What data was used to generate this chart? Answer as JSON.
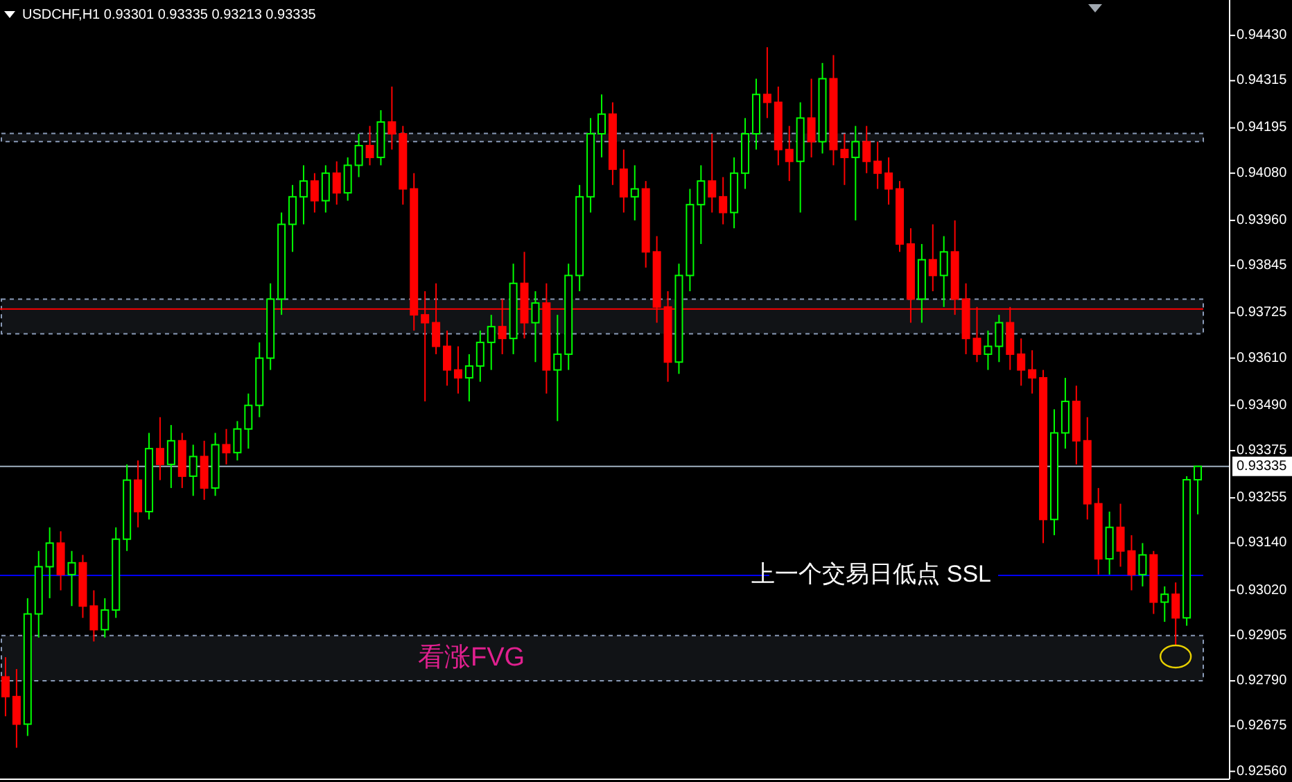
{
  "chart_data": {
    "type": "candlestick",
    "title": "USDCHF,H1 0.93301 0.93335 0.93213 0.93335",
    "categories": [
      null,
      null,
      null,
      null,
      null,
      null,
      null,
      null,
      null,
      null,
      null,
      null,
      null,
      null,
      null,
      null,
      null,
      null,
      null,
      null,
      null,
      null,
      null,
      null,
      null,
      null,
      null,
      null,
      null,
      null,
      null,
      null,
      null,
      null,
      null,
      null,
      null,
      null,
      null,
      null,
      null,
      null,
      null,
      null,
      null,
      null,
      null,
      null,
      null,
      null,
      null,
      null,
      null,
      null,
      null,
      null,
      null,
      null,
      null,
      null,
      null,
      null,
      null,
      null,
      null,
      null,
      null,
      null,
      null,
      null,
      null,
      null,
      null,
      null,
      null,
      null,
      null,
      null,
      null,
      null,
      null,
      null,
      null,
      null,
      null,
      null,
      null,
      null,
      null,
      null,
      null,
      null,
      null,
      null,
      null,
      null,
      null,
      null,
      null,
      null,
      null,
      null,
      null,
      null,
      null,
      null,
      null,
      null,
      null
    ],
    "ohlc": [
      [
        0.928,
        0.9285,
        0.927,
        0.9275
      ],
      [
        0.9275,
        0.9282,
        0.9262,
        0.9268
      ],
      [
        0.9268,
        0.93,
        0.9265,
        0.9296
      ],
      [
        0.9296,
        0.9312,
        0.929,
        0.9308
      ],
      [
        0.9308,
        0.9318,
        0.93,
        0.9314
      ],
      [
        0.9314,
        0.9317,
        0.9302,
        0.9306
      ],
      [
        0.9306,
        0.9312,
        0.9298,
        0.9309
      ],
      [
        0.9309,
        0.9311,
        0.9295,
        0.9298
      ],
      [
        0.9298,
        0.9302,
        0.9289,
        0.9292
      ],
      [
        0.9292,
        0.93,
        0.929,
        0.9297
      ],
      [
        0.9297,
        0.9318,
        0.9295,
        0.9315
      ],
      [
        0.9315,
        0.9334,
        0.9312,
        0.933
      ],
      [
        0.933,
        0.9335,
        0.9318,
        0.9322
      ],
      [
        0.9322,
        0.9342,
        0.932,
        0.9338
      ],
      [
        0.9338,
        0.9346,
        0.933,
        0.9334
      ],
      [
        0.9334,
        0.9344,
        0.9328,
        0.934
      ],
      [
        0.934,
        0.9342,
        0.9328,
        0.9331
      ],
      [
        0.9331,
        0.9339,
        0.9326,
        0.9336
      ],
      [
        0.9336,
        0.934,
        0.9325,
        0.9328
      ],
      [
        0.9328,
        0.9342,
        0.9326,
        0.9339
      ],
      [
        0.9339,
        0.9343,
        0.9334,
        0.9337
      ],
      [
        0.9337,
        0.9345,
        0.9335,
        0.9343
      ],
      [
        0.9343,
        0.9352,
        0.9338,
        0.9349
      ],
      [
        0.9349,
        0.9365,
        0.9346,
        0.9361
      ],
      [
        0.9361,
        0.938,
        0.9358,
        0.9376
      ],
      [
        0.9376,
        0.9398,
        0.9372,
        0.9395
      ],
      [
        0.9395,
        0.9405,
        0.9388,
        0.9402
      ],
      [
        0.9402,
        0.941,
        0.9395,
        0.9406
      ],
      [
        0.9406,
        0.9408,
        0.9398,
        0.9401
      ],
      [
        0.9401,
        0.941,
        0.9398,
        0.9408
      ],
      [
        0.9408,
        0.9411,
        0.94,
        0.9403
      ],
      [
        0.9403,
        0.9412,
        0.9401,
        0.941
      ],
      [
        0.941,
        0.9418,
        0.9407,
        0.9415
      ],
      [
        0.9415,
        0.942,
        0.941,
        0.9412
      ],
      [
        0.9412,
        0.9424,
        0.941,
        0.9421
      ],
      [
        0.9421,
        0.943,
        0.9414,
        0.9418
      ],
      [
        0.9418,
        0.942,
        0.94,
        0.9404
      ],
      [
        0.9404,
        0.9408,
        0.9368,
        0.9372
      ],
      [
        0.9372,
        0.9378,
        0.935,
        0.937
      ],
      [
        0.937,
        0.938,
        0.9362,
        0.9364
      ],
      [
        0.9364,
        0.9368,
        0.9354,
        0.9358
      ],
      [
        0.9358,
        0.9364,
        0.9352,
        0.9356
      ],
      [
        0.9356,
        0.9362,
        0.935,
        0.9359
      ],
      [
        0.9359,
        0.9368,
        0.9355,
        0.9365
      ],
      [
        0.9365,
        0.9372,
        0.9358,
        0.9369
      ],
      [
        0.9369,
        0.9376,
        0.9362,
        0.9366
      ],
      [
        0.9366,
        0.9385,
        0.9362,
        0.938
      ],
      [
        0.938,
        0.9388,
        0.9366,
        0.937
      ],
      [
        0.937,
        0.9378,
        0.936,
        0.9375
      ],
      [
        0.9375,
        0.938,
        0.9352,
        0.9358
      ],
      [
        0.9358,
        0.9372,
        0.9345,
        0.9362
      ],
      [
        0.9362,
        0.9385,
        0.9358,
        0.9382
      ],
      [
        0.9382,
        0.9405,
        0.9378,
        0.9402
      ],
      [
        0.9402,
        0.9422,
        0.9398,
        0.9418
      ],
      [
        0.9418,
        0.9428,
        0.9412,
        0.9423
      ],
      [
        0.9423,
        0.9426,
        0.9405,
        0.9409
      ],
      [
        0.9409,
        0.9414,
        0.9398,
        0.9402
      ],
      [
        0.9402,
        0.941,
        0.9396,
        0.9404
      ],
      [
        0.9404,
        0.9406,
        0.9384,
        0.9388
      ],
      [
        0.9388,
        0.9392,
        0.937,
        0.9374
      ],
      [
        0.9374,
        0.9378,
        0.9355,
        0.936
      ],
      [
        0.936,
        0.9385,
        0.9357,
        0.9382
      ],
      [
        0.9382,
        0.9404,
        0.9378,
        0.94
      ],
      [
        0.94,
        0.941,
        0.939,
        0.9406
      ],
      [
        0.9406,
        0.9418,
        0.9398,
        0.9402
      ],
      [
        0.9402,
        0.9407,
        0.9395,
        0.9398
      ],
      [
        0.9398,
        0.9412,
        0.9394,
        0.9408
      ],
      [
        0.9408,
        0.9422,
        0.9404,
        0.9418
      ],
      [
        0.9418,
        0.9432,
        0.9414,
        0.9428
      ],
      [
        0.9428,
        0.944,
        0.9422,
        0.9426
      ],
      [
        0.9426,
        0.943,
        0.941,
        0.9414
      ],
      [
        0.9414,
        0.942,
        0.9406,
        0.9411
      ],
      [
        0.9411,
        0.9426,
        0.9398,
        0.9422
      ],
      [
        0.9422,
        0.9432,
        0.9412,
        0.9416
      ],
      [
        0.9416,
        0.9436,
        0.9413,
        0.9432
      ],
      [
        0.9432,
        0.9438,
        0.941,
        0.9414
      ],
      [
        0.9414,
        0.9418,
        0.9405,
        0.9412
      ],
      [
        0.9412,
        0.942,
        0.9396,
        0.9416
      ],
      [
        0.9416,
        0.942,
        0.9408,
        0.9411
      ],
      [
        0.9411,
        0.9416,
        0.9404,
        0.9408
      ],
      [
        0.9408,
        0.9412,
        0.94,
        0.9404
      ],
      [
        0.9404,
        0.9406,
        0.9388,
        0.939
      ],
      [
        0.939,
        0.9394,
        0.937,
        0.9376
      ],
      [
        0.9376,
        0.939,
        0.937,
        0.9386
      ],
      [
        0.9386,
        0.9395,
        0.9378,
        0.9382
      ],
      [
        0.9382,
        0.9392,
        0.9374,
        0.9388
      ],
      [
        0.9388,
        0.9396,
        0.9372,
        0.9376
      ],
      [
        0.9376,
        0.938,
        0.9362,
        0.9366
      ],
      [
        0.9366,
        0.9374,
        0.936,
        0.9362
      ],
      [
        0.9362,
        0.9368,
        0.9358,
        0.9364
      ],
      [
        0.9364,
        0.9372,
        0.936,
        0.937
      ],
      [
        0.937,
        0.9374,
        0.9358,
        0.9362
      ],
      [
        0.9362,
        0.9366,
        0.9354,
        0.9358
      ],
      [
        0.9358,
        0.9363,
        0.9352,
        0.9356
      ],
      [
        0.9356,
        0.9358,
        0.9314,
        0.932
      ],
      [
        0.932,
        0.9348,
        0.9316,
        0.9342
      ],
      [
        0.9342,
        0.9356,
        0.9338,
        0.935
      ],
      [
        0.935,
        0.9354,
        0.9334,
        0.934
      ],
      [
        0.934,
        0.9346,
        0.932,
        0.9324
      ],
      [
        0.9324,
        0.9328,
        0.9306,
        0.931
      ],
      [
        0.931,
        0.9322,
        0.9306,
        0.9318
      ],
      [
        0.9318,
        0.9324,
        0.9308,
        0.9312
      ],
      [
        0.9312,
        0.9316,
        0.9302,
        0.9306
      ],
      [
        0.9306,
        0.9314,
        0.9303,
        0.9311
      ],
      [
        0.9311,
        0.9312,
        0.9296,
        0.9299
      ],
      [
        0.9299,
        0.9303,
        0.9294,
        0.9301
      ],
      [
        0.9301,
        0.9304,
        0.9288,
        0.9295
      ],
      [
        0.9295,
        0.9331,
        0.9293,
        0.93301
      ],
      [
        0.93301,
        0.93335,
        0.93213,
        0.93335
      ]
    ],
    "ylim": [
      0.9254,
      0.9452
    ],
    "yticks": [
      {
        "value": 0.9256,
        "label": "0.92560"
      },
      {
        "value": 0.92675,
        "label": "0.92675"
      },
      {
        "value": 0.9279,
        "label": "0.92790"
      },
      {
        "value": 0.92905,
        "label": "0.92905"
      },
      {
        "value": 0.9302,
        "label": "0.93020"
      },
      {
        "value": 0.9314,
        "label": "0.93140"
      },
      {
        "value": 0.93255,
        "label": "0.93255"
      },
      {
        "value": 0.93375,
        "label": "0.93375"
      },
      {
        "value": 0.9349,
        "label": "0.93490"
      },
      {
        "value": 0.9361,
        "label": "0.93610"
      },
      {
        "value": 0.93725,
        "label": "0.93725"
      },
      {
        "value": 0.93845,
        "label": "0.93845"
      },
      {
        "value": 0.9396,
        "label": "0.93960"
      },
      {
        "value": 0.9408,
        "label": "0.94080"
      },
      {
        "value": 0.94195,
        "label": "0.94195"
      },
      {
        "value": 0.94315,
        "label": "0.94315"
      },
      {
        "value": 0.9443,
        "label": "0.94430"
      }
    ],
    "tick_labels": "y",
    "grid": false,
    "ref_lines": [
      {
        "axis": "y",
        "value": 0.93335,
        "label": "0.93335",
        "color": "#a0b0c0"
      },
      {
        "axis": "y",
        "value": 0.93735,
        "color": "#ff0000"
      },
      {
        "axis": "y",
        "value": 0.93058,
        "label": "上一个交易日低点  SSL",
        "color": "#0000ff"
      }
    ],
    "bands": [
      {
        "axis": "y",
        "from": 0.9416,
        "to": 0.94181,
        "color": "#8a9bb8"
      },
      {
        "axis": "y",
        "from": 0.93672,
        "to": 0.9376,
        "color": "#8a9bb8"
      },
      {
        "axis": "y",
        "from": 0.9279,
        "to": 0.92905,
        "label": "看涨FVG",
        "color": "#8a9bb8"
      }
    ]
  }
}
